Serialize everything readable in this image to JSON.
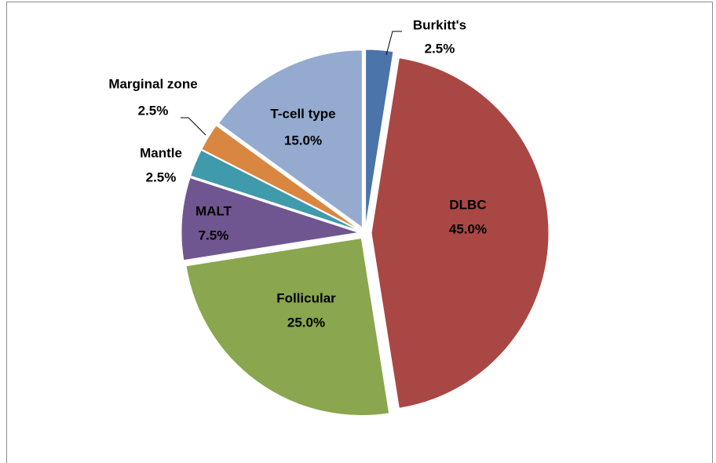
{
  "chart_data": {
    "type": "pie",
    "categories": [
      "Burkitt's",
      "DLBC",
      "Follicular",
      "MALT",
      "Mantle",
      "Marginal zone",
      "T-cell type"
    ],
    "values": [
      2.5,
      45.0,
      25.0,
      7.5,
      2.5,
      2.5,
      15.0
    ],
    "value_labels": [
      "2.5%",
      "45.0%",
      "25.0%",
      "7.5%",
      "2.5%",
      "2.5%",
      "15.0%"
    ],
    "colors": [
      "#4a74aa",
      "#a94744",
      "#8aa64e",
      "#705690",
      "#3f9aac",
      "#d98640",
      "#94aacf"
    ]
  }
}
